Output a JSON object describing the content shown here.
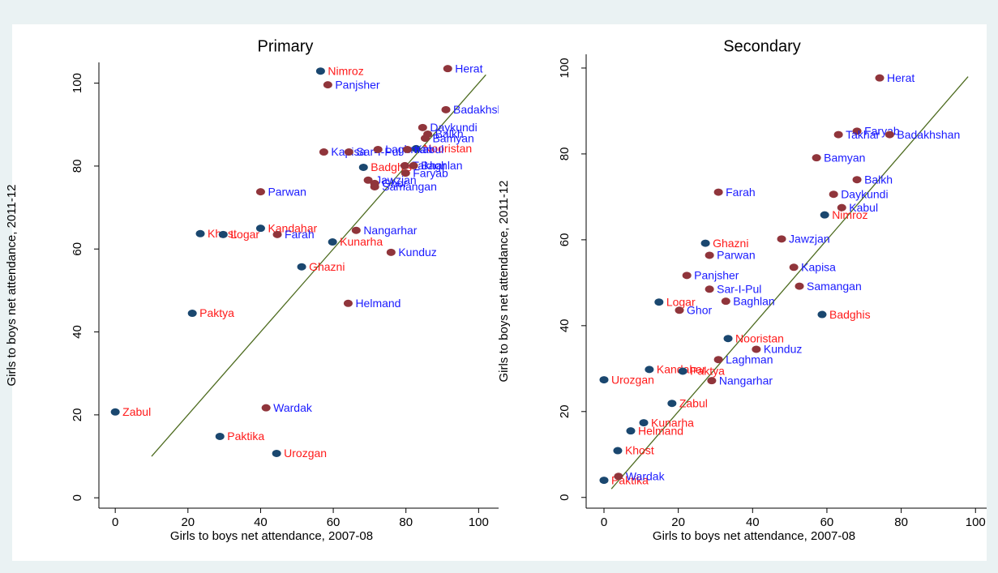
{
  "chart_data": [
    {
      "type": "scatter",
      "title": "Primary",
      "x_label": "Girls to boys net attendance, 2007-08",
      "y_label": "Girls to boys net attendance, 2011-12",
      "xlim": [
        -4.5,
        105.5
      ],
      "ylim": [
        -2.5,
        105
      ],
      "xticks": [
        0,
        20,
        40,
        60,
        80,
        100
      ],
      "yticks": [
        0,
        20,
        40,
        60,
        80,
        100
      ],
      "fit_line": {
        "color": "#4d6b1f",
        "x": [
          10,
          102
        ],
        "values": [
          10,
          102
        ]
      },
      "series": [
        {
          "color": "#1a476f",
          "label_color": "#ff1a1a",
          "labels": [
            "Nimroz",
            "Kandahar",
            "Khost",
            "Logar",
            "Kunarha",
            "Ghazni",
            "Paktya",
            "Zabul",
            "Paktika",
            "Urozgan",
            "Badghis",
            "Nooristan"
          ],
          "x": [
            56.5,
            40,
            23.4,
            29.7,
            59.8,
            51.3,
            21.2,
            0,
            28.8,
            44.4,
            68.3,
            82.8
          ],
          "values": [
            102.9,
            65,
            63.7,
            63.5,
            61.7,
            55.7,
            44.5,
            20.7,
            14.8,
            10.7,
            79.7,
            84.2
          ]
        },
        {
          "color": "#90353b",
          "label_color": "#1a1aff",
          "labels": [
            "Herat",
            "Panjsher",
            "Badakhshan",
            "Daykundi",
            "Balkh",
            "Bamyan",
            "Kapisa",
            "Sar-I-Pul",
            "Laghman",
            "Kabul",
            "Takhar",
            "Baghlan",
            "Faryab",
            "Jawzjan",
            "Ghor",
            "Samangan",
            "Parwan",
            "Farah",
            "Nangarhar",
            "Kunduz",
            "Helmand",
            "Wardak"
          ],
          "x": [
            91.5,
            58.5,
            91,
            84.6,
            86,
            85.3,
            57.4,
            64.3,
            72.3,
            80.4,
            79.7,
            82.1,
            79.9,
            69.6,
            71.4,
            71.4,
            40,
            44.6,
            66.3,
            75.9,
            64.1,
            41.5
          ],
          "values": [
            103.5,
            99.6,
            93.6,
            89.3,
            87.7,
            86.7,
            83.4,
            83.4,
            84,
            84,
            80.1,
            80.1,
            78.3,
            76.6,
            75.8,
            75,
            73.8,
            63.5,
            64.5,
            59.2,
            46.9,
            21.7
          ]
        }
      ]
    },
    {
      "type": "scatter",
      "title": "Secondary",
      "x_label": "Girls to boys net attendance, 2007-08",
      "y_label": "Girls to boys net attendance, 2011-12",
      "xlim": [
        -4.8,
        103
      ],
      "ylim": [
        -2.5,
        103.2
      ],
      "xticks": [
        0,
        20,
        40,
        60,
        80,
        100
      ],
      "yticks": [
        0,
        20,
        40,
        60,
        80,
        100
      ],
      "fit_line": {
        "color": "#4d6b1f",
        "x": [
          2,
          98
        ],
        "values": [
          2,
          98
        ]
      },
      "series": [
        {
          "color": "#1a476f",
          "label_color": "#ff1a1a",
          "labels": [
            "Nimroz",
            "Ghazni",
            "Logar",
            "Badghis",
            "Nooristan",
            "Kandahar",
            "Paktya",
            "Urozgan",
            "Zabul",
            "Kunarha",
            "Helmand",
            "Khost",
            "Paktika"
          ],
          "x": [
            59.4,
            27.3,
            14.8,
            58.7,
            33.4,
            12.2,
            21.2,
            0,
            18.3,
            10.7,
            7.2,
            3.7,
            0
          ],
          "values": [
            65.8,
            59.2,
            45.5,
            42.6,
            37,
            29.8,
            29.4,
            27.4,
            21.9,
            17.4,
            15.5,
            10.9,
            4
          ]
        },
        {
          "color": "#90353b",
          "label_color": "#1a1aff",
          "labels": [
            "Herat",
            "Faryab",
            "Takhar",
            "Badakhshan",
            "Bamyan",
            "Balkh",
            "Farah",
            "Daykundi",
            "Kabul",
            "Jawzjan",
            "Parwan",
            "Kapisa",
            "Panjsher",
            "Samangan",
            "Sar-I-Pul",
            "Baghlan",
            "Ghor",
            "Kunduz",
            "Laghman",
            "Nangarhar",
            "Wardak"
          ],
          "x": [
            74.2,
            68.1,
            63.1,
            76.9,
            57.2,
            68.1,
            30.8,
            61.8,
            64,
            47.8,
            28.4,
            51.1,
            22.3,
            52.6,
            28.4,
            32.8,
            20.3,
            41,
            30.8,
            29,
            3.9
          ],
          "values": [
            97.7,
            85.3,
            84.5,
            84.5,
            79.1,
            74,
            71.1,
            70.6,
            67.5,
            60.2,
            56.4,
            53.6,
            51.7,
            49.2,
            48.5,
            45.7,
            43.6,
            34.5,
            32.1,
            27.2,
            4.9
          ]
        }
      ]
    }
  ]
}
